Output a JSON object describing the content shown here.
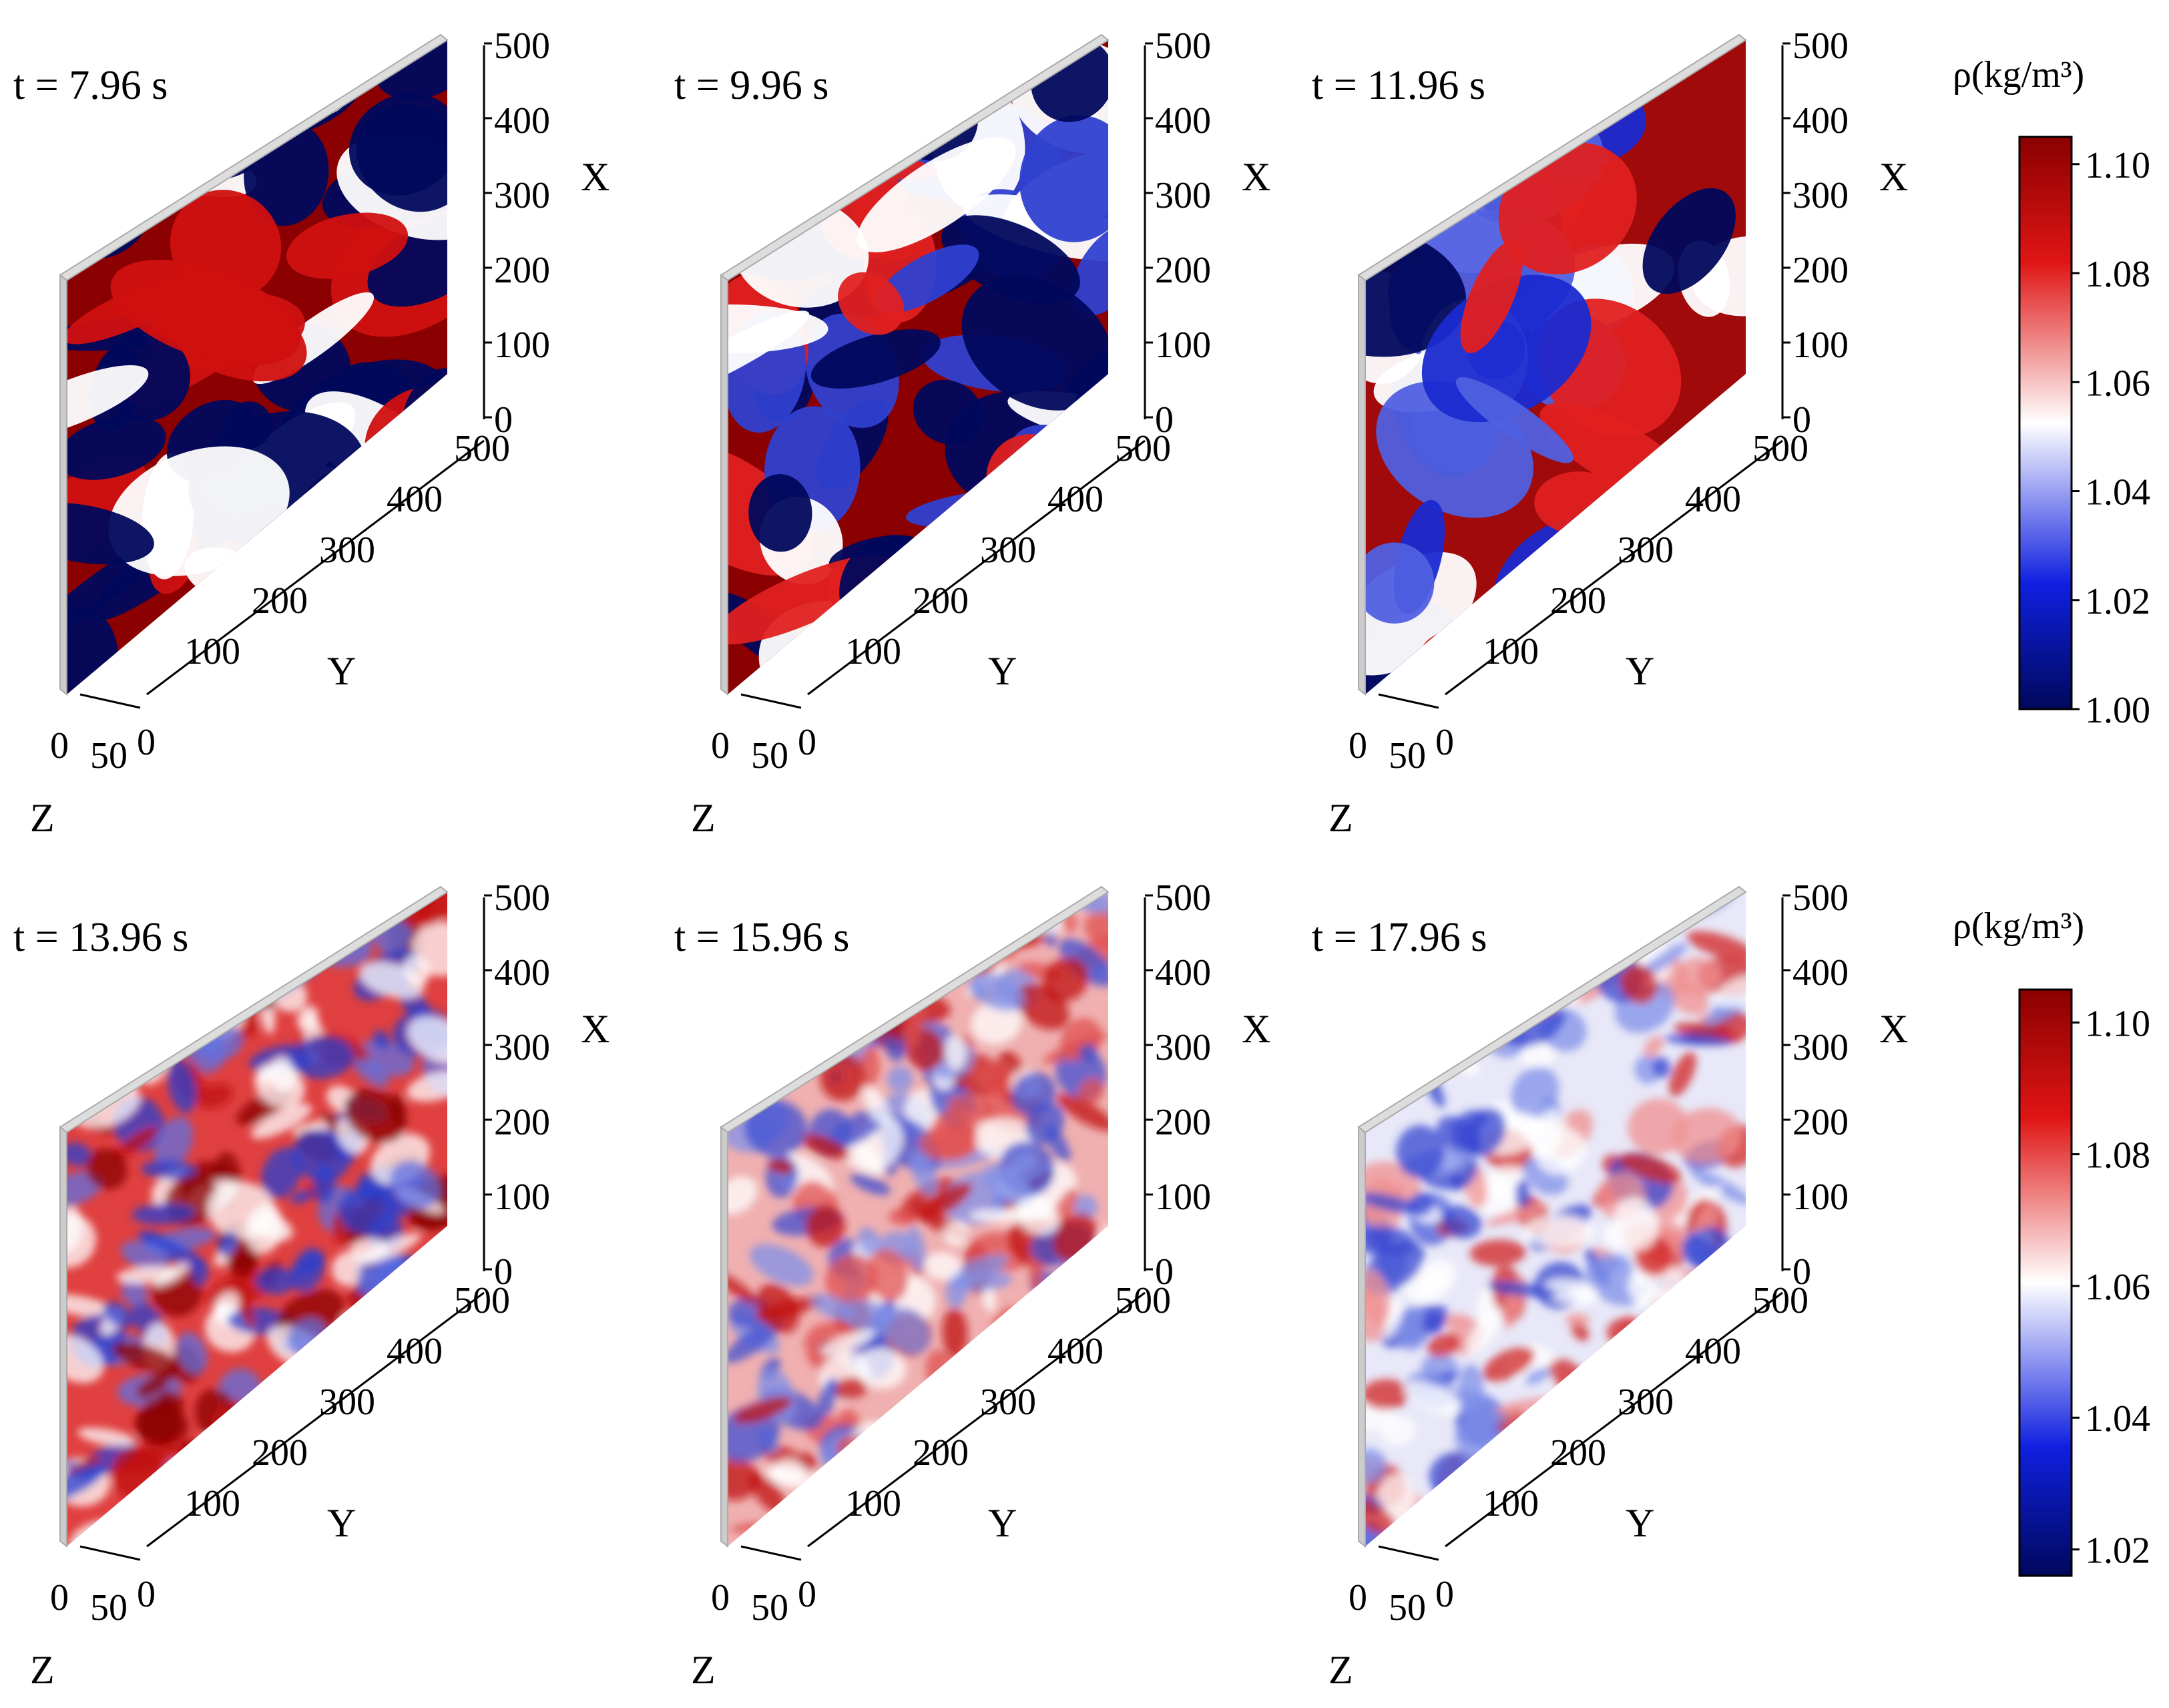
{
  "chart_data": [
    {
      "type": "heatmap",
      "time_label": "t = 7.96 s",
      "axes": {
        "x_label": "X",
        "y_label": "Y",
        "z_label": "Z",
        "x_ticks": [
          "0",
          "100",
          "200",
          "300",
          "400",
          "500"
        ],
        "y_ticks": [
          "100",
          "200",
          "300",
          "400",
          "500"
        ],
        "z_ticks": [
          "0",
          "50",
          "0"
        ]
      }
    },
    {
      "type": "heatmap",
      "time_label": "t = 9.96 s",
      "axes": {
        "x_label": "X",
        "y_label": "Y",
        "z_label": "Z",
        "x_ticks": [
          "0",
          "100",
          "200",
          "300",
          "400",
          "500"
        ],
        "y_ticks": [
          "100",
          "200",
          "300",
          "400",
          "500"
        ],
        "z_ticks": [
          "0",
          "50",
          "0"
        ]
      }
    },
    {
      "type": "heatmap",
      "time_label": "t = 11.96 s",
      "axes": {
        "x_label": "X",
        "y_label": "Y",
        "z_label": "Z",
        "x_ticks": [
          "0",
          "100",
          "200",
          "300",
          "400",
          "500"
        ],
        "y_ticks": [
          "100",
          "200",
          "300",
          "400",
          "500"
        ],
        "z_ticks": [
          "0",
          "50",
          "0"
        ]
      }
    },
    {
      "type": "heatmap",
      "time_label": "t = 13.96 s",
      "axes": {
        "x_label": "X",
        "y_label": "Y",
        "z_label": "Z",
        "x_ticks": [
          "0",
          "100",
          "200",
          "300",
          "400",
          "500"
        ],
        "y_ticks": [
          "100",
          "200",
          "300",
          "400",
          "500"
        ],
        "z_ticks": [
          "0",
          "50",
          "0"
        ]
      }
    },
    {
      "type": "heatmap",
      "time_label": "t = 15.96 s",
      "axes": {
        "x_label": "X",
        "y_label": "Y",
        "z_label": "Z",
        "x_ticks": [
          "0",
          "100",
          "200",
          "300",
          "400",
          "500"
        ],
        "y_ticks": [
          "100",
          "200",
          "300",
          "400",
          "500"
        ],
        "z_ticks": [
          "0",
          "50",
          "0"
        ]
      }
    },
    {
      "type": "heatmap",
      "time_label": "t = 17.96 s",
      "axes": {
        "x_label": "X",
        "y_label": "Y",
        "z_label": "Z",
        "x_ticks": [
          "0",
          "100",
          "200",
          "300",
          "400",
          "500"
        ],
        "y_ticks": [
          "100",
          "200",
          "300",
          "400",
          "500"
        ],
        "z_ticks": [
          "0",
          "50",
          "0"
        ]
      }
    }
  ],
  "colorbars": [
    {
      "title": "ρ(kg/m³)",
      "ticks": [
        "1.10",
        "1.08",
        "1.06",
        "1.04",
        "1.02",
        "1.00"
      ],
      "range": [
        1.0,
        1.105
      ]
    },
    {
      "title": "ρ(kg/m³)",
      "ticks": [
        "1.10",
        "1.08",
        "1.06",
        "1.04",
        "1.02"
      ],
      "range": [
        1.016,
        1.105
      ]
    }
  ],
  "colormap": {
    "low": "#00085c",
    "mid": "#ffffff",
    "high": "#8b0000"
  }
}
